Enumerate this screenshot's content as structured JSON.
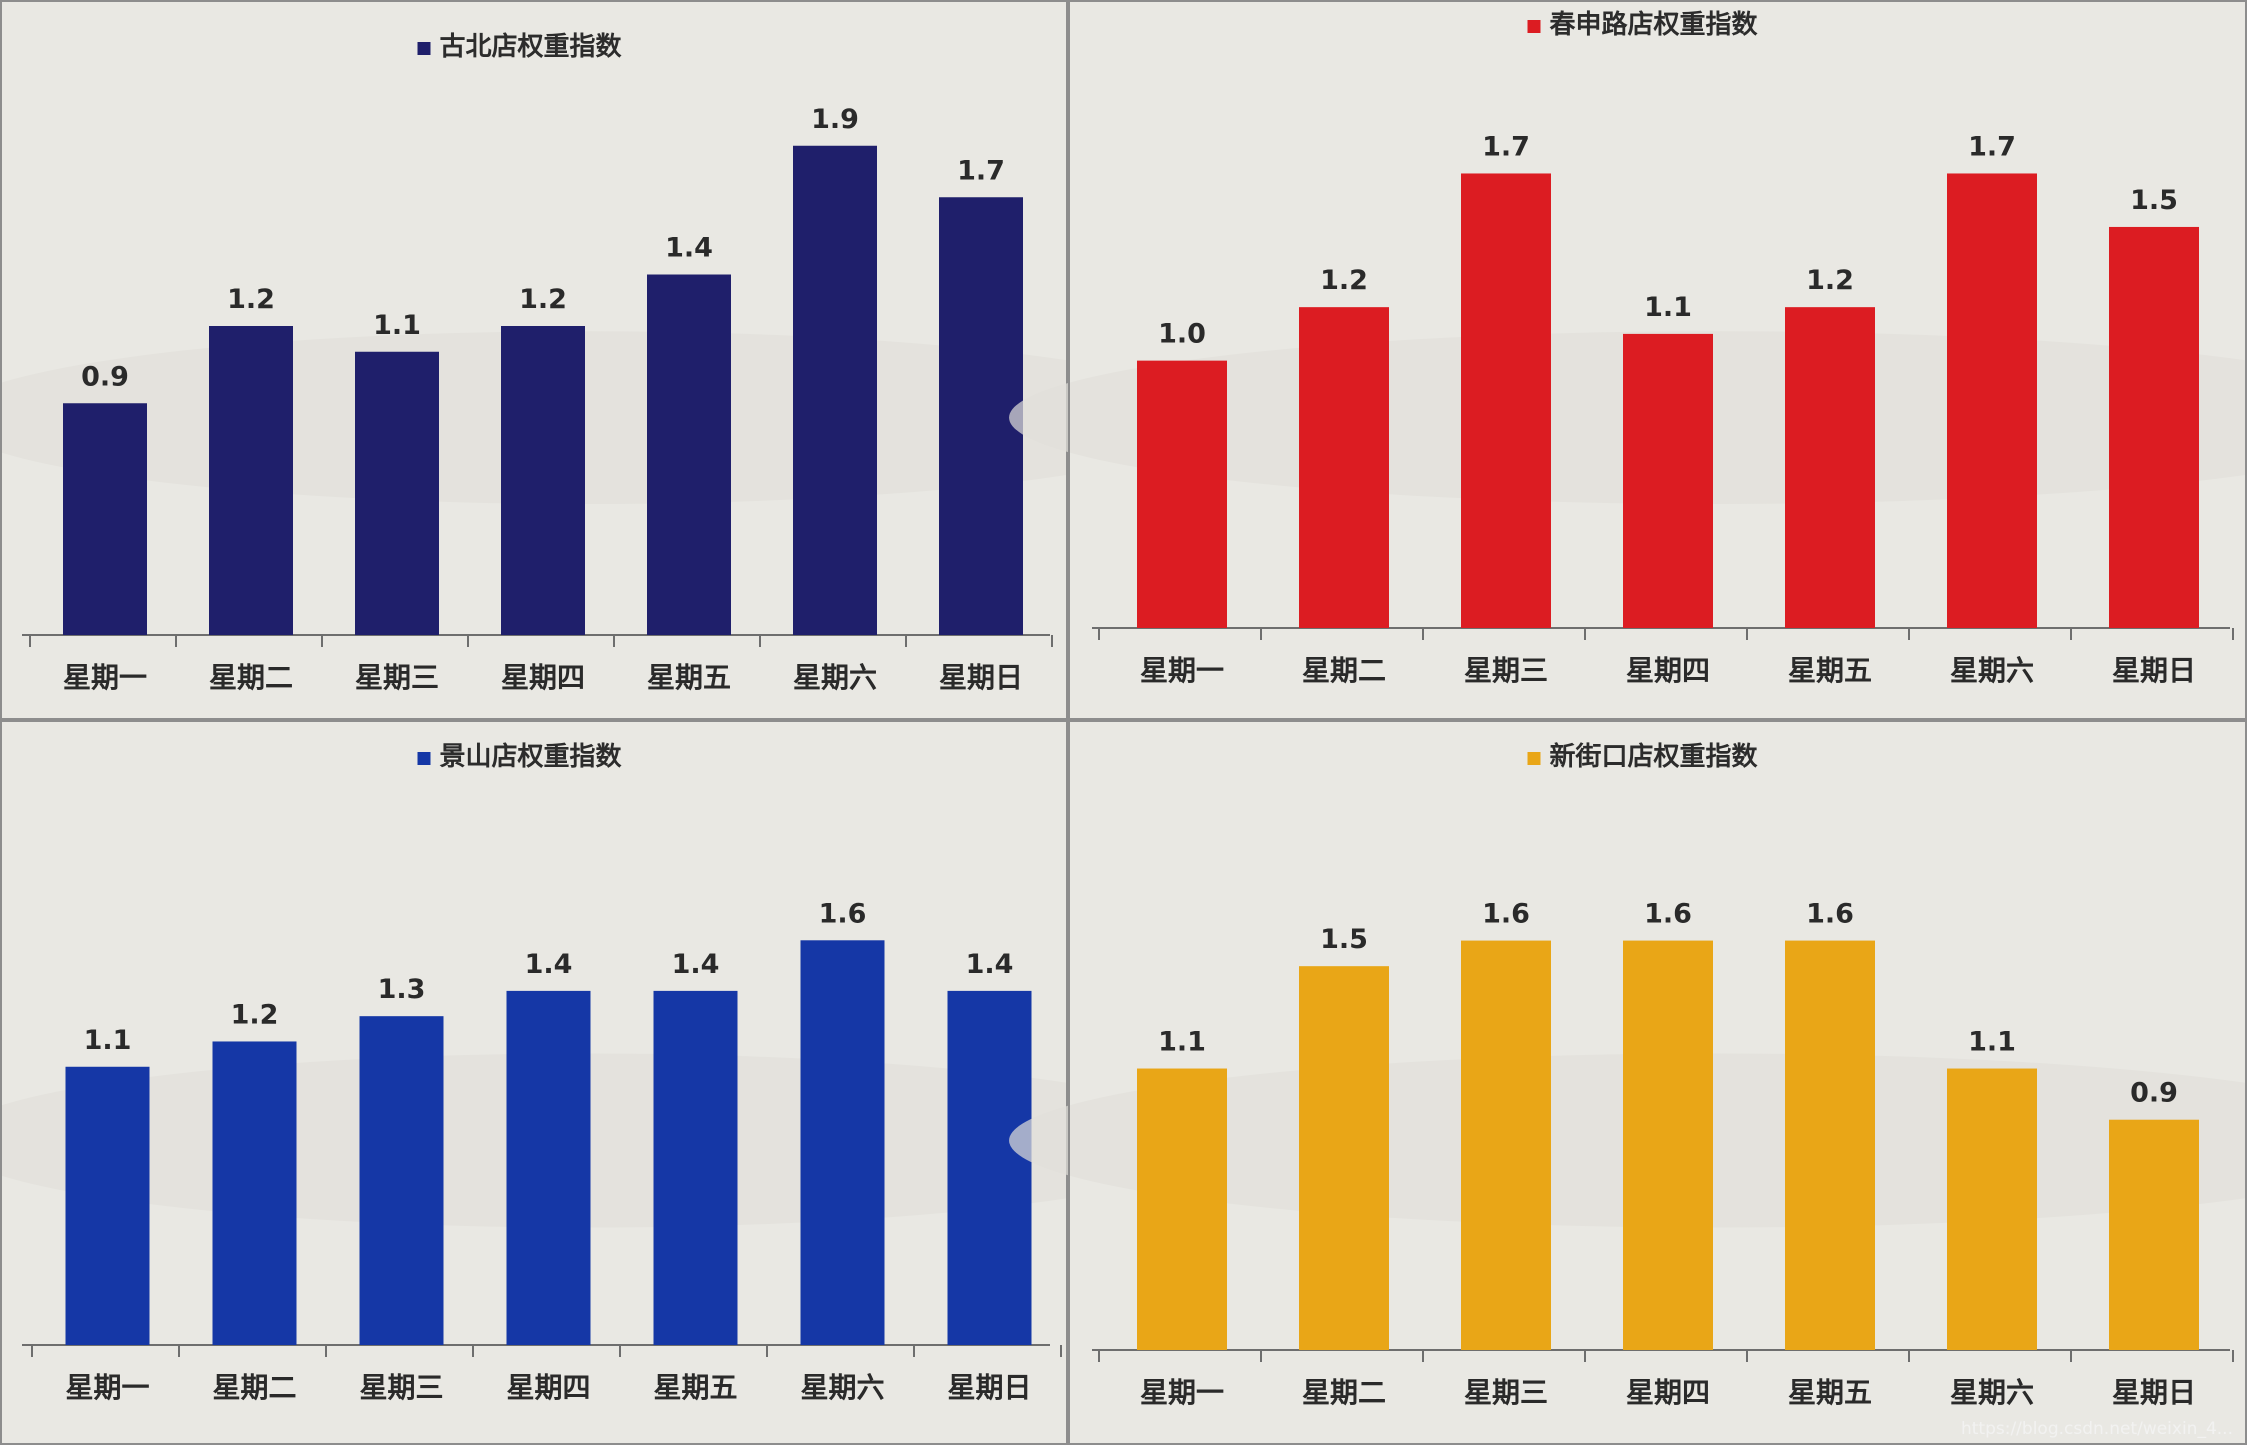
{
  "colors": {
    "background": "#e7e6e1",
    "panel_border": "#8d8d8d",
    "axis": "#6e6e6e",
    "gubei": "#1f1f6b",
    "chunshen": "#dc1c22",
    "jingshan": "#1537a6",
    "xinjiekou": "#e9a617"
  },
  "watermark": "https://blog.csdn.net/weixin_4...",
  "chart_data": [
    {
      "type": "bar",
      "title": "古北店权重指数",
      "legend": "top-center",
      "color_key": "gubei",
      "categories": [
        "星期一",
        "星期二",
        "星期三",
        "星期四",
        "星期五",
        "星期六",
        "星期日"
      ],
      "series": [
        {
          "name": "古北店权重指数",
          "values": [
            0.9,
            1.2,
            1.1,
            1.2,
            1.4,
            1.9,
            1.7
          ]
        }
      ],
      "value_labels": [
        "0.9",
        "1.2",
        "1.1",
        "1.2",
        "1.4",
        "1.9",
        "1.7"
      ],
      "ylim": [
        0,
        2.0
      ],
      "grid": false
    },
    {
      "type": "bar",
      "title": "春申路店权重指数",
      "legend": "top-center",
      "color_key": "chunshen",
      "categories": [
        "星期一",
        "星期二",
        "星期三",
        "星期四",
        "星期五",
        "星期六",
        "星期日"
      ],
      "series": [
        {
          "name": "春申路店权重指数",
          "values": [
            1.0,
            1.2,
            1.7,
            1.1,
            1.2,
            1.7,
            1.5
          ]
        }
      ],
      "value_labels": [
        "1.0",
        "1.2",
        "1.7",
        "1.1",
        "1.2",
        "1.7",
        "1.5"
      ],
      "ylim": [
        0,
        1.9
      ],
      "grid": false
    },
    {
      "type": "bar",
      "title": "景山店权重指数",
      "legend": "top-center",
      "color_key": "jingshan",
      "categories": [
        "星期一",
        "星期二",
        "星期三",
        "星期四",
        "星期五",
        "星期六",
        "星期日"
      ],
      "series": [
        {
          "name": "景山店权重指数",
          "values": [
            1.1,
            1.2,
            1.3,
            1.4,
            1.4,
            1.6,
            1.4
          ]
        }
      ],
      "value_labels": [
        "1.1",
        "1.2",
        "1.3",
        "1.4",
        "1.4",
        "1.6",
        "1.4"
      ],
      "ylim": [
        0,
        1.7
      ],
      "grid": false
    },
    {
      "type": "bar",
      "title": "新街口店权重指数",
      "legend": "top-center",
      "color_key": "xinjiekou",
      "categories": [
        "星期一",
        "星期二",
        "星期三",
        "星期四",
        "星期五",
        "星期六",
        "星期日"
      ],
      "series": [
        {
          "name": "新街口店权重指数",
          "values": [
            1.1,
            1.5,
            1.6,
            1.6,
            1.6,
            1.1,
            0.9
          ]
        }
      ],
      "value_labels": [
        "1.1",
        "1.5",
        "1.6",
        "1.6",
        "1.6",
        "1.1",
        "0.9"
      ],
      "ylim": [
        0,
        1.7
      ],
      "grid": false
    }
  ]
}
